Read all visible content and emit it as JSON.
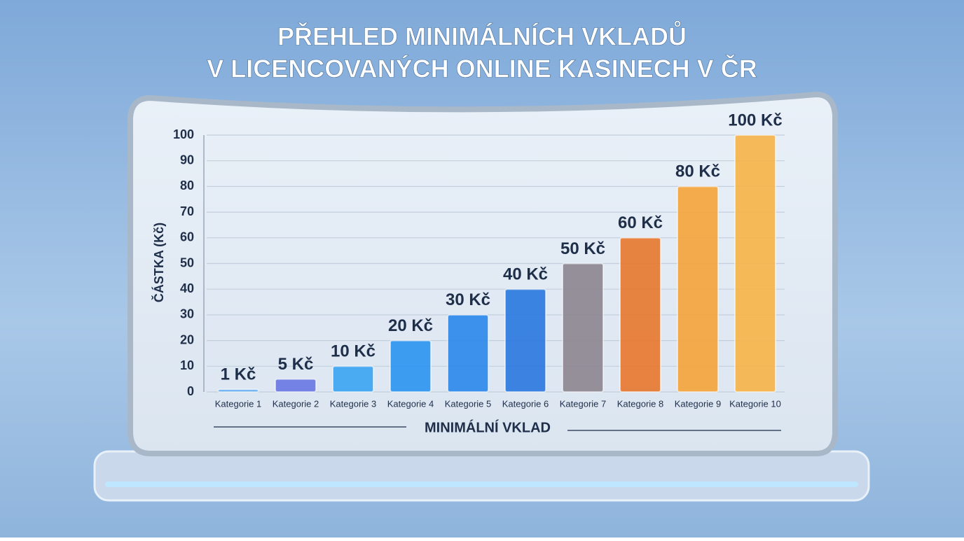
{
  "chart_data": {
    "type": "bar",
    "title": [
      "PŘEHLED MINIMÁLNÍCH VKLADŮ",
      "V LICENCOVANÝCH ONLINE KASINECH V ČR"
    ],
    "ylabel": "ČÁSTKA (Kč)",
    "xlabel": "MINIMÁLNÍ VKLAD",
    "categories": [
      "Kategorie 1",
      "Kategorie 2",
      "Kategorie 3",
      "Kategorie 4",
      "Kategorie 5",
      "Kategorie 6",
      "Kategorie 7",
      "Kategorie 8",
      "Kategorie 9",
      "Kategorie 10"
    ],
    "values": [
      1,
      5,
      10,
      20,
      30,
      40,
      50,
      60,
      80,
      100
    ],
    "value_labels": [
      "1 Kč",
      "5 Kč",
      "10 Kč",
      "20 Kč",
      "30 Kč",
      "40 Kč",
      "50 Kč",
      "60 Kč",
      "80 Kč",
      "100 Kč"
    ],
    "colors": [
      "#5aa8f0",
      "#6a78e4",
      "#3aa4f2",
      "#2a94f0",
      "#2a88ec",
      "#2a78e0",
      "#8c8690",
      "#e8782e",
      "#f5a43a",
      "#f8b448"
    ],
    "ylim": [
      0,
      100
    ],
    "yticks": [
      0,
      10,
      20,
      30,
      40,
      50,
      60,
      70,
      80,
      90,
      100
    ],
    "grid": true
  }
}
